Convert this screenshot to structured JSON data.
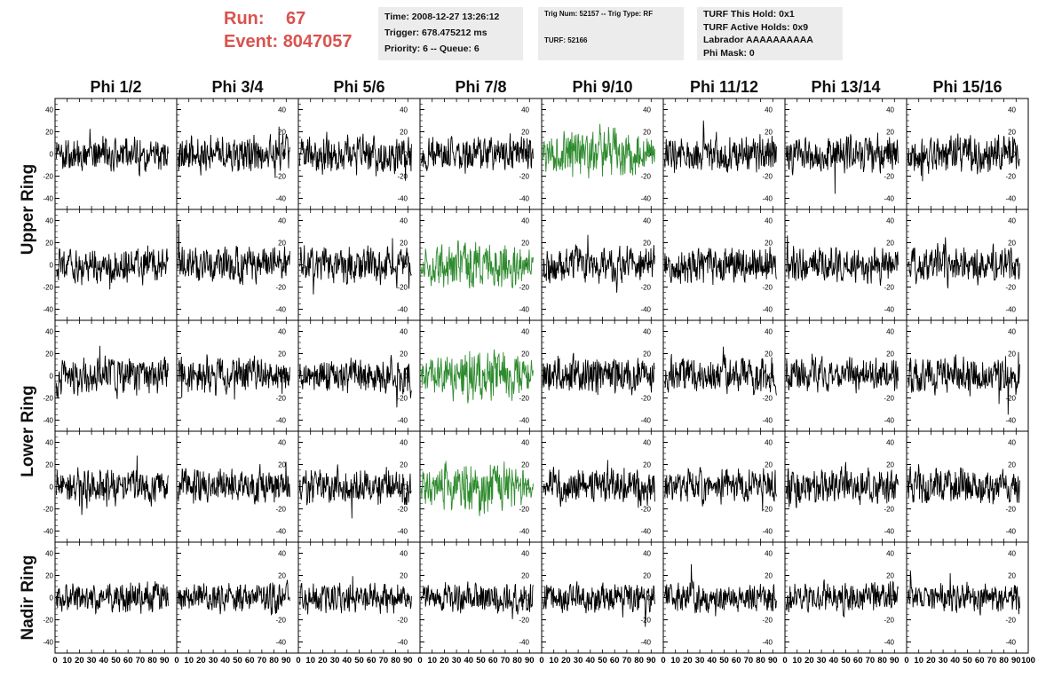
{
  "header": {
    "run_label": "Run:",
    "run_value": "67",
    "event_label": "Event:",
    "event_value": "8047057"
  },
  "info_box_1": {
    "time": "Time: 2008-12-27 13:26:12",
    "trigger": "Trigger: 678.475212 ms",
    "priority": "Priority: 6 -- Queue: 6"
  },
  "info_box_2": {
    "trig": "Trig Num: 52157 -- Trig Type: RF",
    "turf": "TURF: 52166"
  },
  "info_box_3": {
    "this_hold": "TURF This Hold: 0x1",
    "active_holds": "TURF Active Holds: 0x9",
    "labrador": "Labrador AAAAAAAAAA",
    "phi_mask": "Phi Mask: 0"
  },
  "colors": {
    "header_red": "#d9534f",
    "trace_normal": "#000000",
    "trace_triggered": "#2e8b2e",
    "info_bg": "#ececec"
  },
  "chart_data": {
    "type": "line",
    "column_labels": [
      "Phi 1/2",
      "Phi 3/4",
      "Phi 5/6",
      "Phi 7/8",
      "Phi 9/10",
      "Phi 11/12",
      "Phi 13/14",
      "Phi 15/16"
    ],
    "ring_labels": [
      "Upper Ring",
      "Lower Ring",
      "Nadir Ring"
    ],
    "ylim": [
      -50,
      50
    ],
    "xlim": [
      0,
      100
    ],
    "y_ticks": [
      -40,
      -20,
      0,
      20,
      40
    ],
    "x_ticks": [
      0,
      10,
      20,
      30,
      40,
      50,
      60,
      70,
      80,
      90,
      100
    ],
    "x_tick_labels": [
      "0",
      "10",
      "20",
      "30",
      "40",
      "50",
      "60",
      "70",
      "80",
      "90",
      "100"
    ],
    "y_tick_labels": [
      "-40",
      "-20",
      "0",
      "20",
      "40"
    ],
    "samples_per_trace": 260,
    "trace_x_end": 93,
    "highlighted_traces": [
      {
        "row": 0,
        "col": 4
      },
      {
        "row": 1,
        "col": 3
      },
      {
        "row": 2,
        "col": 3
      },
      {
        "row": 3,
        "col": 3
      }
    ]
  }
}
